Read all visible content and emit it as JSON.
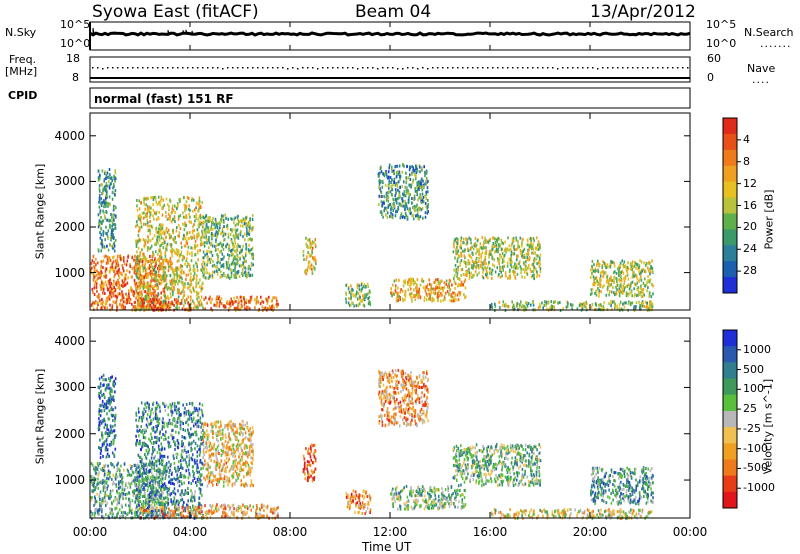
{
  "header": {
    "station": "Syowa East (fitACF)",
    "beam": "Beam 04",
    "date": "13/Apr/2012"
  },
  "top_panels": {
    "nsky_label": "N.Sky",
    "nsearch_label": "N.Search",
    "nsky_ticks": [
      "10^5",
      "10^0"
    ],
    "nsearch_ticks": [
      "10^5",
      "10^0"
    ],
    "freq_label_line1": "Freq.",
    "freq_label_line2": "[MHz]",
    "freq_ticks": [
      "18",
      "8"
    ],
    "nave_label": "Nave",
    "nave_ticks": [
      "60",
      "0"
    ],
    "cpid_label": "CPID",
    "cpid_text": "normal (fast) 151 RF"
  },
  "x_axis": {
    "label": "Time UT",
    "ticks": [
      "00:00",
      "04:00",
      "08:00",
      "12:00",
      "16:00",
      "20:00",
      "00:00"
    ]
  },
  "chart_data": [
    {
      "type": "heatmap",
      "panel": "power",
      "ylabel": "Slant Range [km]",
      "ylim": [
        180,
        4500
      ],
      "yticks": [
        1000,
        2000,
        3000,
        4000
      ],
      "xlim_hours": [
        0,
        24
      ],
      "colorbar": {
        "label": "Power [dB]",
        "range": [
          0,
          30
        ],
        "ticks": [
          "4",
          "8",
          "12",
          "16",
          "20",
          "24",
          "28"
        ],
        "colors": [
          "#1f2fd8",
          "#1c5fb0",
          "#2a7f9a",
          "#3a9a6a",
          "#5fb04a",
          "#b8c23a",
          "#e8c020",
          "#f0a020",
          "#ee7a1a",
          "#e85018",
          "#e02a1a"
        ]
      },
      "scatter_regions": [
        {
          "t": [
            0.0,
            3.0
          ],
          "r": [
            200,
            1400
          ],
          "level": 0.8
        },
        {
          "t": [
            0.3,
            1.0
          ],
          "r": [
            1500,
            3300
          ],
          "level": 0.3
        },
        {
          "t": [
            1.8,
            4.5
          ],
          "r": [
            200,
            2700
          ],
          "level": 0.55
        },
        {
          "t": [
            2.0,
            4.0
          ],
          "r": [
            200,
            450
          ],
          "level": 0.9
        },
        {
          "t": [
            4.5,
            7.5
          ],
          "r": [
            200,
            500
          ],
          "level": 0.8
        },
        {
          "t": [
            4.5,
            6.5
          ],
          "r": [
            900,
            2300
          ],
          "level": 0.4
        },
        {
          "t": [
            8.5,
            9.0
          ],
          "r": [
            1000,
            1800
          ],
          "level": 0.6
        },
        {
          "t": [
            10.2,
            11.2
          ],
          "r": [
            300,
            800
          ],
          "level": 0.45
        },
        {
          "t": [
            11.5,
            13.5
          ],
          "r": [
            2200,
            3400
          ],
          "level": 0.3
        },
        {
          "t": [
            12.0,
            15.0
          ],
          "r": [
            400,
            900
          ],
          "level": 0.65
        },
        {
          "t": [
            14.5,
            18.0
          ],
          "r": [
            900,
            1800
          ],
          "level": 0.5
        },
        {
          "t": [
            16.0,
            22.5
          ],
          "r": [
            200,
            400
          ],
          "level": 0.45
        },
        {
          "t": [
            20.0,
            22.5
          ],
          "r": [
            500,
            1300
          ],
          "level": 0.5
        }
      ]
    },
    {
      "type": "heatmap",
      "panel": "velocity",
      "ylabel": "Slant Range [km]",
      "ylim": [
        180,
        4500
      ],
      "yticks": [
        1000,
        2000,
        3000,
        4000
      ],
      "xlim_hours": [
        0,
        24
      ],
      "colorbar": {
        "label": "Velocity [m s^-1]",
        "range": [
          -1200,
          1200
        ],
        "ticks": [
          "1000",
          "500",
          "100",
          "25",
          "-25",
          "-100",
          "-500",
          "-1000"
        ],
        "colors": [
          "#1f2fd8",
          "#2a5ab0",
          "#2f7f8f",
          "#3d9a5a",
          "#58c03a",
          "#b8b8b8",
          "#f0c050",
          "#f0a020",
          "#ee7a1a",
          "#e83c18",
          "#e0161a"
        ]
      },
      "scatter_regions": [
        {
          "t": [
            0.0,
            3.0
          ],
          "r": [
            200,
            1400
          ],
          "level": 0.35
        },
        {
          "t": [
            0.3,
            1.0
          ],
          "r": [
            1500,
            3300
          ],
          "level": 0.2
        },
        {
          "t": [
            1.8,
            4.5
          ],
          "r": [
            200,
            2700
          ],
          "level": 0.25
        },
        {
          "t": [
            2.0,
            4.5
          ],
          "r": [
            200,
            450
          ],
          "level": 0.7
        },
        {
          "t": [
            4.5,
            7.5
          ],
          "r": [
            200,
            500
          ],
          "level": 0.65
        },
        {
          "t": [
            4.5,
            6.5
          ],
          "r": [
            900,
            2300
          ],
          "level": 0.6
        },
        {
          "t": [
            8.5,
            9.0
          ],
          "r": [
            1000,
            1800
          ],
          "level": 0.85
        },
        {
          "t": [
            10.2,
            11.2
          ],
          "r": [
            300,
            800
          ],
          "level": 0.75
        },
        {
          "t": [
            11.5,
            13.5
          ],
          "r": [
            2200,
            3400
          ],
          "level": 0.7
        },
        {
          "t": [
            12.0,
            15.0
          ],
          "r": [
            400,
            900
          ],
          "level": 0.4
        },
        {
          "t": [
            14.5,
            18.0
          ],
          "r": [
            900,
            1800
          ],
          "level": 0.4
        },
        {
          "t": [
            16.0,
            22.5
          ],
          "r": [
            200,
            400
          ],
          "level": 0.55
        },
        {
          "t": [
            20.0,
            22.5
          ],
          "r": [
            500,
            1300
          ],
          "level": 0.3
        }
      ]
    }
  ]
}
